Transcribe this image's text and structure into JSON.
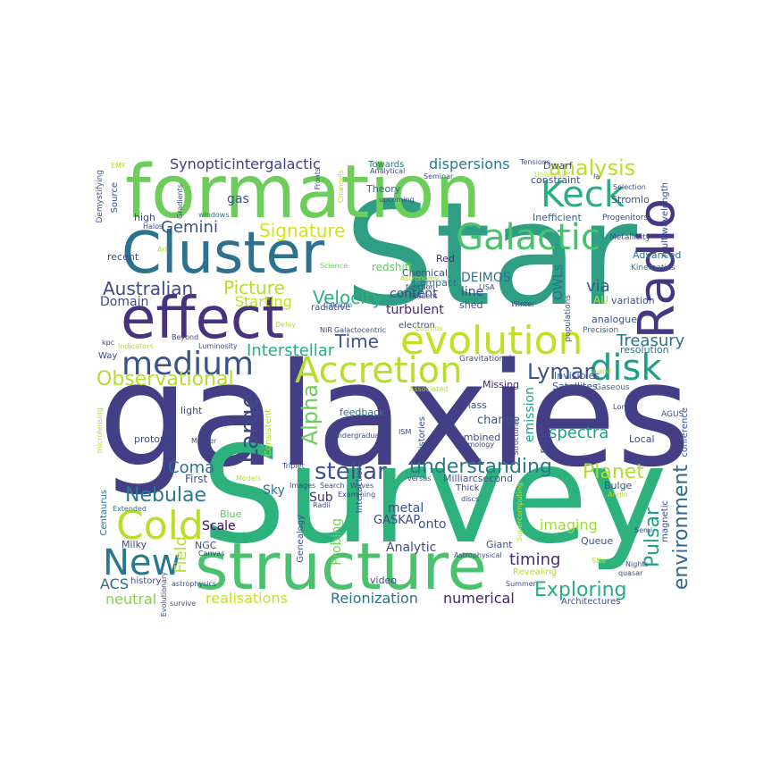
{
  "words": [
    {
      "text": "galaxies",
      "color": "#433e85"
    },
    {
      "text": "Survey",
      "color": "#2db27d"
    },
    {
      "text": "Star",
      "color": "#2e9f84"
    },
    {
      "text": "formation",
      "color": "#6ccd5a"
    },
    {
      "text": "structure",
      "color": "#4ac16d"
    },
    {
      "text": "Cluster",
      "color": "#2c728e"
    },
    {
      "text": "effect",
      "color": "#46327e"
    },
    {
      "text": "Radio",
      "color": "#453781"
    },
    {
      "text": "evolution",
      "color": "#c2df23"
    },
    {
      "text": "Galactic",
      "color": "#4ac16d"
    },
    {
      "text": "Accretion",
      "color": "#b5de2b"
    },
    {
      "text": "medium",
      "color": "#3b528b"
    },
    {
      "text": "disk",
      "color": "#1f9e89"
    },
    {
      "text": "Cold",
      "color": "#b8de29"
    },
    {
      "text": "Keck",
      "color": "#29af7f"
    },
    {
      "text": "New",
      "color": "#2a788e"
    },
    {
      "text": "Large",
      "color": "#3e4a89"
    },
    {
      "text": "Observational",
      "color": "#b5de2b"
    },
    {
      "text": "Alpha",
      "color": "#6ccd5a"
    },
    {
      "text": "Lyman",
      "color": "#3b528b"
    },
    {
      "text": "understanding",
      "color": "#2a788e"
    },
    {
      "text": "stellar",
      "color": "#3b528b"
    },
    {
      "text": "environment",
      "color": "#31688e"
    },
    {
      "text": "analysis",
      "color": "#bddf26"
    },
    {
      "text": "Exploring",
      "color": "#26ad81"
    },
    {
      "text": "Pulsar",
      "color": "#1fa187"
    },
    {
      "text": "Planet",
      "color": "#addc30"
    },
    {
      "text": "Nebulae",
      "color": "#2a788e"
    },
    {
      "text": "Australian",
      "color": "#3e4a89"
    },
    {
      "text": "Synopticintergalactic",
      "color": "#433e85"
    },
    {
      "text": "dispersions",
      "color": "#2a788e"
    },
    {
      "text": "Signature",
      "color": "#d5e21a"
    },
    {
      "text": "Gemini",
      "color": "#3b528b"
    },
    {
      "text": "Picture",
      "color": "#b5de2b"
    },
    {
      "text": "Velocity",
      "color": "#2db27d"
    },
    {
      "text": "Time",
      "color": "#3b528b"
    },
    {
      "text": "Interstellar",
      "color": "#27ad81"
    },
    {
      "text": "Treasury",
      "color": "#2c728e"
    },
    {
      "text": "spectra",
      "color": "#1fa187"
    },
    {
      "text": "timing",
      "color": "#482878"
    },
    {
      "text": "realisations",
      "color": "#c8e020"
    },
    {
      "text": "Reionization",
      "color": "#2c728e"
    },
    {
      "text": "numerical",
      "color": "#481f70"
    },
    {
      "text": "imaging",
      "color": "#a0da39"
    },
    {
      "text": "neutral",
      "color": "#84d44b"
    },
    {
      "text": "Coma",
      "color": "#2c728e"
    },
    {
      "text": "Field",
      "color": "#b8de29"
    },
    {
      "text": "ACS",
      "color": "#31688e"
    },
    {
      "text": "Domain",
      "color": "#3e4a89"
    },
    {
      "text": "via",
      "color": "#365c8d"
    },
    {
      "text": "DEIMOS",
      "color": "#2c728e"
    },
    {
      "text": "OWLs",
      "color": "#2c728e"
    },
    {
      "text": "line",
      "color": "#3e4a89"
    },
    {
      "text": "content",
      "color": "#3e4a89"
    },
    {
      "text": "turbulent",
      "color": "#481f70"
    },
    {
      "text": "gas",
      "color": "#3b528b"
    },
    {
      "text": "Theory",
      "color": "#355f8d"
    },
    {
      "text": "Towards",
      "color": "#2c728e"
    },
    {
      "text": "Dwarf",
      "color": "#3e4a89"
    },
    {
      "text": "constraint",
      "color": "#3e4a89"
    },
    {
      "text": "Inefficient",
      "color": "#355f8d"
    },
    {
      "text": "Stromlo",
      "color": "#3b528b"
    },
    {
      "text": "Advanced",
      "color": "#2c728e"
    },
    {
      "text": "Red",
      "color": "#482878"
    },
    {
      "text": "redshift",
      "color": "#5ec962"
    },
    {
      "text": "Starting",
      "color": "#bddf26"
    },
    {
      "text": "Sky",
      "color": "#2c728e"
    },
    {
      "text": "Sub",
      "color": "#46327e"
    },
    {
      "text": "metal",
      "color": "#3b528b"
    },
    {
      "text": "onto",
      "color": "#3b528b"
    },
    {
      "text": "GASKAP",
      "color": "#3e4a89"
    },
    {
      "text": "Scale",
      "color": "#440154"
    },
    {
      "text": "Probing",
      "color": "#73d056"
    },
    {
      "text": "Analytic",
      "color": "#3e4a89"
    },
    {
      "text": "Queue",
      "color": "#3b528b"
    },
    {
      "text": "emission",
      "color": "#20a386"
    },
    {
      "text": "ratio",
      "color": "#3e4a89"
    },
    {
      "text": "change",
      "color": "#3b528b"
    },
    {
      "text": "mass",
      "color": "#3e4a89"
    },
    {
      "text": "combined",
      "color": "#3e4a89"
    },
    {
      "text": "feedback",
      "color": "#2c728e"
    },
    {
      "text": "Missing",
      "color": "#481f70"
    },
    {
      "text": "Invisibles",
      "color": "#3b528b"
    },
    {
      "text": "Satellites",
      "color": "#3b528b"
    },
    {
      "text": "Gaseous",
      "color": "#2c728e"
    },
    {
      "text": "AU",
      "color": "#b5de2b"
    },
    {
      "text": "variation",
      "color": "#3b528b"
    },
    {
      "text": "resolution",
      "color": "#2a788e"
    },
    {
      "text": "analogue",
      "color": "#3b528b"
    },
    {
      "text": "populations",
      "color": "#3e4a89"
    },
    {
      "text": "Bulge",
      "color": "#3b528b"
    },
    {
      "text": "Local",
      "color": "#3e4a89"
    },
    {
      "text": "magnetic",
      "color": "#3b528b"
    },
    {
      "text": "conference",
      "color": "#3b528b"
    },
    {
      "text": "AGUS",
      "color": "#3b528b"
    },
    {
      "text": "light",
      "color": "#3e4a89"
    },
    {
      "text": "proton",
      "color": "#3e4a89"
    },
    {
      "text": "Similarities",
      "color": "#3e4a89"
    },
    {
      "text": "Consistent",
      "color": "#b5de2b"
    },
    {
      "text": "First",
      "color": "#3b528b"
    },
    {
      "text": "Centaurus",
      "color": "#2c728e"
    },
    {
      "text": "Milky",
      "color": "#3e4a89"
    },
    {
      "text": "Blue",
      "color": "#5ec962"
    },
    {
      "text": "NGC",
      "color": "#3b528b"
    },
    {
      "text": "history",
      "color": "#3e4a89"
    },
    {
      "text": "Genealogy",
      "color": "#3b528b"
    },
    {
      "text": "Interaction",
      "color": "#3b528b"
    },
    {
      "text": "video",
      "color": "#3e4a89"
    },
    {
      "text": "Giant",
      "color": "#3e4a89"
    },
    {
      "text": "Thick",
      "color": "#3e4a89"
    },
    {
      "text": "shed",
      "color": "#3e4a89"
    },
    {
      "text": "Milliarcsecond",
      "color": "#3b528b"
    },
    {
      "text": "electron",
      "color": "#3e4a89"
    },
    {
      "text": "Chemical",
      "color": "#3b528b"
    },
    {
      "text": "Histories",
      "color": "#3e4a89"
    },
    {
      "text": "Compact",
      "color": "#2c728e"
    },
    {
      "text": "Architectures",
      "color": "#3b528b"
    },
    {
      "text": "Revealing",
      "color": "#b5de2b"
    },
    {
      "text": "recent",
      "color": "#3e4a89"
    },
    {
      "text": "high",
      "color": "#3e4a89"
    },
    {
      "text": "Source",
      "color": "#3e4a89"
    },
    {
      "text": "Demystifying",
      "color": "#3b528b"
    },
    {
      "text": "Way",
      "color": "#3e4a89"
    },
    {
      "text": "radiative",
      "color": "#3e4a89"
    },
    {
      "text": "Gravitational",
      "color": "#3e4a89"
    },
    {
      "text": "Precision",
      "color": "#2c728e"
    },
    {
      "text": "Kinematics",
      "color": "#2c728e"
    },
    {
      "text": "multiwavelength",
      "color": "#3e4a89"
    },
    {
      "text": "Progenitors",
      "color": "#3e4a89"
    },
    {
      "text": "Metallicity",
      "color": "#3b528b"
    },
    {
      "text": "Selection",
      "color": "#3e4a89"
    },
    {
      "text": "Tensions",
      "color": "#3b528b"
    },
    {
      "text": "Winter",
      "color": "#3e4a89"
    },
    {
      "text": "Student",
      "color": "#3e4a89"
    },
    {
      "text": "Galactocentric",
      "color": "#3e4a89"
    },
    {
      "text": "Calcium",
      "color": "#2c728e"
    },
    {
      "text": "Cosmos",
      "color": "#b5de2b"
    },
    {
      "text": "function",
      "color": "#3e4a89"
    },
    {
      "text": "Astronomy",
      "color": "#b5de2b"
    },
    {
      "text": "Science",
      "color": "#6ccd5a"
    },
    {
      "text": "NIR",
      "color": "#3e4a89"
    },
    {
      "text": "Delay",
      "color": "#b5de2b"
    },
    {
      "text": "Luminosity",
      "color": "#3e4a89"
    },
    {
      "text": "Beyond",
      "color": "#3e4a89"
    },
    {
      "text": "Indicators",
      "color": "#b5de2b"
    },
    {
      "text": "kpc",
      "color": "#3e4a89"
    },
    {
      "text": "Halos",
      "color": "#3e4a89"
    },
    {
      "text": "Art",
      "color": "#b5de2b"
    },
    {
      "text": "windows",
      "color": "#2c728e"
    },
    {
      "text": "Gradients",
      "color": "#3e4a89"
    },
    {
      "text": "EMF",
      "color": "#b5de2b"
    },
    {
      "text": "Fronts",
      "color": "#3e4a89"
    },
    {
      "text": "Channels",
      "color": "#b5de2b"
    },
    {
      "text": "Seminar",
      "color": "#3e4a89"
    },
    {
      "text": "Analytical",
      "color": "#3e4a89"
    },
    {
      "text": "upcoming",
      "color": "#3e4a89"
    },
    {
      "text": "Ia",
      "color": "#3e4a89"
    },
    {
      "text": "LISA",
      "color": "#3e4a89"
    },
    {
      "text": "Associated",
      "color": "#b5de2b"
    },
    {
      "text": "band",
      "color": "#b5de2b"
    },
    {
      "text": "Long",
      "color": "#3e4a89"
    },
    {
      "text": "cosmology",
      "color": "#3e4a89"
    },
    {
      "text": "ISM",
      "color": "#3e4a89"
    },
    {
      "text": "Undergraduate",
      "color": "#3e4a89"
    },
    {
      "text": "Structural",
      "color": "#3e4a89"
    },
    {
      "text": "Merger",
      "color": "#3e4a89"
    },
    {
      "text": "microlensing",
      "color": "#b5de2b"
    },
    {
      "text": "Triplet",
      "color": "#3e4a89"
    },
    {
      "text": "versus",
      "color": "#3e4a89"
    },
    {
      "text": "Models",
      "color": "#b5de2b"
    },
    {
      "text": "Images",
      "color": "#3e4a89"
    },
    {
      "text": "Search",
      "color": "#3e4a89"
    },
    {
      "text": "Waves",
      "color": "#3e4a89"
    },
    {
      "text": "Radii",
      "color": "#3e4a89"
    },
    {
      "text": "discs",
      "color": "#3e4a89"
    },
    {
      "text": "Supercomputing",
      "color": "#b5de2b"
    },
    {
      "text": "Anglo",
      "color": "#b5de2b"
    },
    {
      "text": "Extended",
      "color": "#2c728e"
    },
    {
      "text": "Semi",
      "color": "#3e4a89"
    },
    {
      "text": "Canvas",
      "color": "#3e4a89"
    },
    {
      "text": "Astrophysical",
      "color": "#3e4a89"
    },
    {
      "text": "SNe",
      "color": "#b5de2b"
    },
    {
      "text": "Nights",
      "color": "#3e4a89"
    },
    {
      "text": "quasar",
      "color": "#3e4a89"
    },
    {
      "text": "Summer",
      "color": "#3e4a89"
    },
    {
      "text": "Evolutionary",
      "color": "#3e4a89"
    },
    {
      "text": "astrophysics",
      "color": "#3e4a89"
    },
    {
      "text": "survive",
      "color": "#3e4a89"
    },
    {
      "text": "Universal",
      "color": "#b5de2b"
    },
    {
      "text": "Examining",
      "color": "#3e4a89"
    }
  ]
}
